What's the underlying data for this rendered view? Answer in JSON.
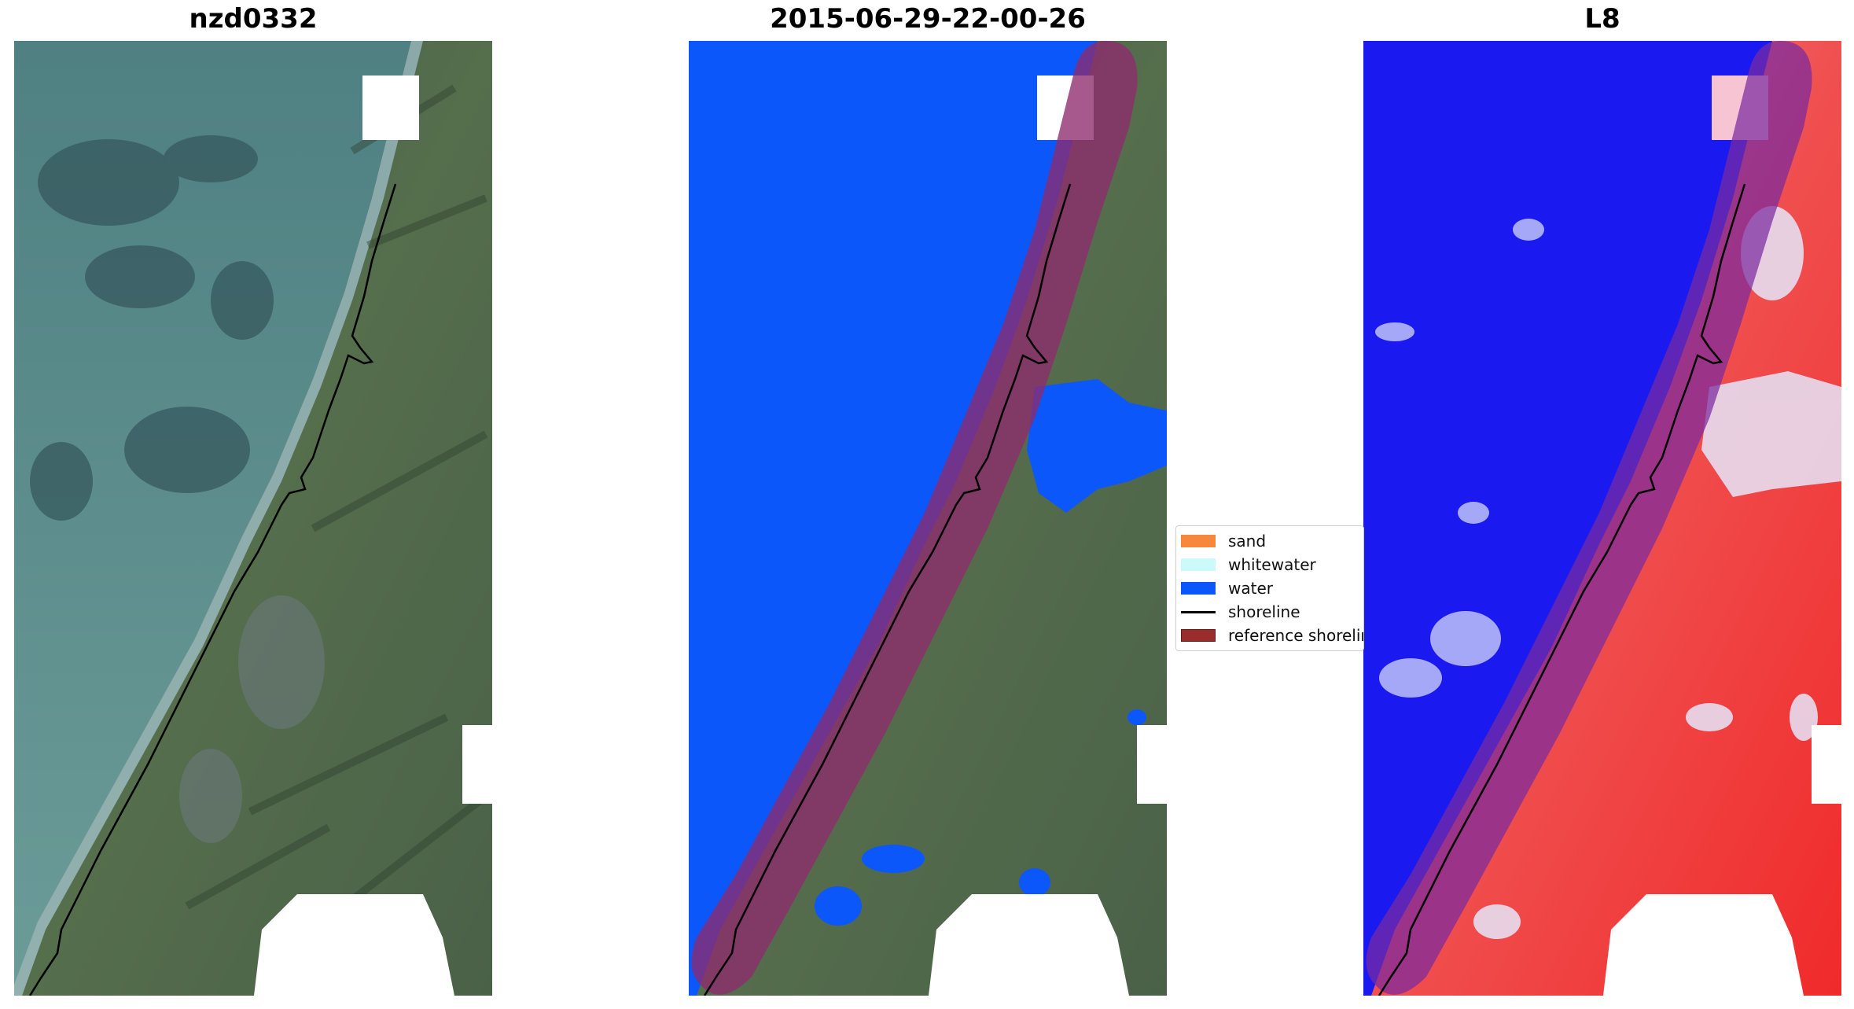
{
  "titles": {
    "left": "nzd0332",
    "middle": "2015-06-29-22-00-26",
    "right": "L8"
  },
  "legend": {
    "placement": "between middle and right panels",
    "items": [
      {
        "label": "sand",
        "color": "#f7873a",
        "type": "patch"
      },
      {
        "label": "whitewater",
        "color": "#ccfafa",
        "type": "patch"
      },
      {
        "label": "water",
        "color": "#0b57fa",
        "type": "patch"
      },
      {
        "label": "shoreline",
        "color": "#000000",
        "type": "line"
      },
      {
        "label": "reference shoreline",
        "color": "#9a2c2c",
        "type": "patch"
      }
    ]
  },
  "colors": {
    "sea": "#5f8f90",
    "land": "#4d6a4f",
    "water_class": "#0b57fa",
    "buffer": "#8e2a6e",
    "index_water": "#1a1af0",
    "index_land": "#f03030"
  }
}
